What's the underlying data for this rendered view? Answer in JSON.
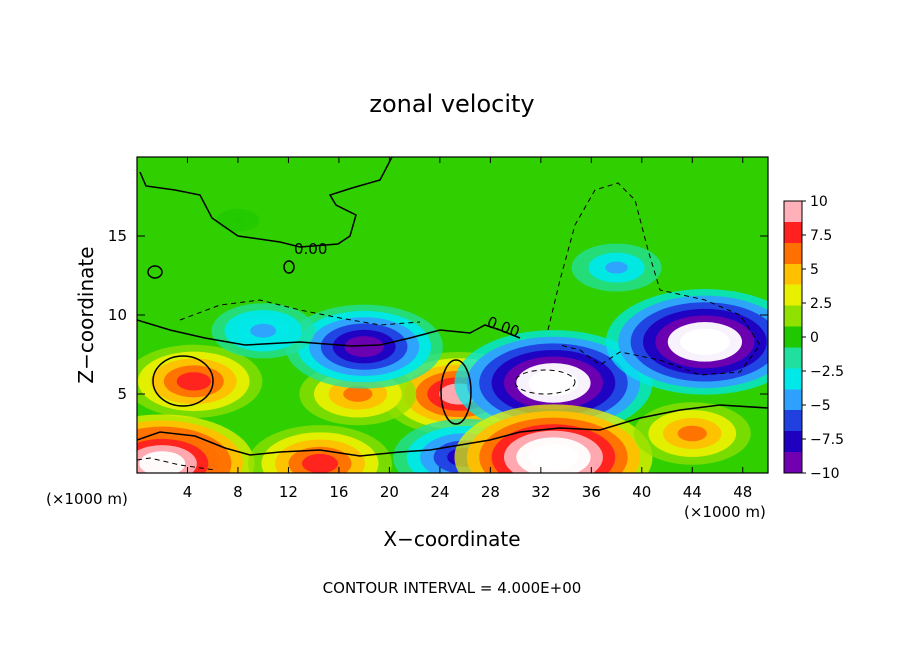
{
  "chart_data": {
    "type": "heatmap",
    "title": "zonal velocity",
    "xlabel": "X−coordinate",
    "ylabel": "Z−coordinate",
    "x_unit_left": "(×1000 m)",
    "x_unit_right": "(×1000 m)",
    "footer": "CONTOUR INTERVAL = 4.000E+00",
    "xlim": [
      0,
      50
    ],
    "ylim": [
      0,
      20
    ],
    "x_ticks": [
      4,
      8,
      12,
      16,
      20,
      24,
      28,
      32,
      36,
      40,
      44,
      48
    ],
    "x_tick_labels": [
      "4",
      "8",
      "12",
      "16",
      "20",
      "24",
      "28",
      "32",
      "36",
      "40",
      "44",
      "48"
    ],
    "y_ticks": [
      5,
      10,
      15
    ],
    "y_tick_labels": [
      "5",
      "10",
      "15"
    ],
    "colorbar": {
      "range": [
        -10,
        10
      ],
      "ticks": [
        10,
        7.5,
        5,
        2.5,
        0,
        -2.5,
        -5,
        -7.5,
        -10
      ],
      "tick_labels": [
        "10",
        "7.5",
        "5",
        "2.5",
        "0",
        "−2.5",
        "−5",
        "−7.5",
        "−10"
      ],
      "colors": [
        "#ffb0b8",
        "#ff2020",
        "#ff7000",
        "#ffc000",
        "#e8f000",
        "#90e000",
        "#20c800",
        "#20e0a0",
        "#00e8e8",
        "#30a0ff",
        "#2040e0",
        "#2000c0",
        "#7000b0"
      ]
    },
    "contour_labels": [
      {
        "text": "0.00",
        "x": 16.5,
        "z": 14.2
      },
      {
        "text": "0.00",
        "x": 29.5,
        "z": 9.4
      }
    ],
    "features": [
      {
        "x": 4.5,
        "z": 5.8,
        "value": 7.5
      },
      {
        "x": 25.5,
        "z": 5.0,
        "value": 9
      },
      {
        "x": 17.5,
        "z": 5.0,
        "value": 6
      },
      {
        "x": 33.0,
        "z": 5.7,
        "value": -12
      },
      {
        "x": 45.0,
        "z": 8.3,
        "value": -12
      },
      {
        "x": 18.0,
        "z": 8.0,
        "value": -9
      },
      {
        "x": 26.0,
        "z": 1.0,
        "value": -8
      },
      {
        "x": 33.0,
        "z": 1.0,
        "value": 12
      },
      {
        "x": 44.0,
        "z": 2.5,
        "value": 6
      },
      {
        "x": 10.0,
        "z": 9.0,
        "value": -5
      },
      {
        "x": 38.0,
        "z": 13.0,
        "value": -4
      },
      {
        "x": 2.0,
        "z": 0.6,
        "value": 11
      },
      {
        "x": 14.5,
        "z": 0.6,
        "value": 8
      },
      {
        "x": 8.0,
        "z": 16.0,
        "value": 0.5
      }
    ]
  }
}
